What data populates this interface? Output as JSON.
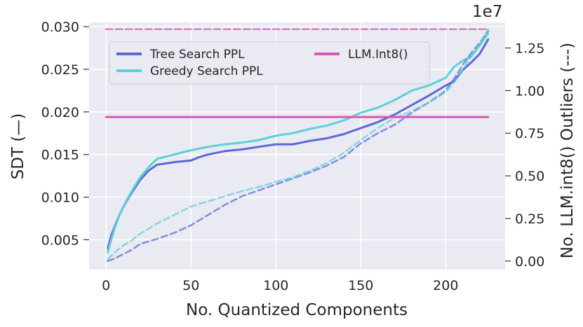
{
  "chart_data": {
    "type": "line",
    "xlabel": "No. Quantized Components",
    "ylabel": "SDT (—)",
    "y2label": "No. LLM.int8() Outliers (---)",
    "y2_multiplier": "1e7",
    "xlim": [
      -10,
      235
    ],
    "ylim": [
      0.0015,
      0.0305
    ],
    "y2lim": [
      -500000,
      14000000
    ],
    "x_ticks": [
      "0",
      "50",
      "100",
      "150",
      "200"
    ],
    "y_ticks": [
      "0.005",
      "0.010",
      "0.015",
      "0.020",
      "0.025",
      "0.030"
    ],
    "y2_ticks": [
      "0.00",
      "0.25",
      "0.50",
      "0.75",
      "1.00",
      "1.25"
    ],
    "grid": true,
    "legend_position": "top-left",
    "colors": {
      "tree": "#5a6ad6",
      "greedy": "#5bd0d8",
      "int8": "#d957b6",
      "background": "#eaeaf2",
      "grid": "#ffffff"
    },
    "legend": [
      {
        "label": "Tree Search PPL",
        "color": "#5a6ad6"
      },
      {
        "label": "Greedy Search PPL",
        "color": "#5bd0d8"
      },
      {
        "label": "LLM.Int8()",
        "color": "#d957b6"
      }
    ],
    "series": [
      {
        "name": "Tree Search PPL",
        "axis": "left",
        "style": "solid",
        "color": "#5a6ad6",
        "x": [
          1,
          3,
          5,
          8,
          12,
          16,
          20,
          25,
          30,
          40,
          50,
          55,
          60,
          70,
          80,
          90,
          100,
          110,
          120,
          130,
          140,
          150,
          160,
          170,
          180,
          190,
          200,
          205,
          210,
          215,
          220,
          225
        ],
        "y": [
          0.004,
          0.0055,
          0.0065,
          0.008,
          0.0095,
          0.0108,
          0.012,
          0.0131,
          0.0138,
          0.0141,
          0.0143,
          0.0147,
          0.015,
          0.0154,
          0.0156,
          0.0159,
          0.0162,
          0.0162,
          0.0166,
          0.0169,
          0.0174,
          0.0181,
          0.0188,
          0.0197,
          0.0208,
          0.0219,
          0.0231,
          0.0236,
          0.0249,
          0.0258,
          0.0268,
          0.0285
        ]
      },
      {
        "name": "Greedy Search PPL",
        "axis": "left",
        "style": "solid",
        "color": "#5bd0d8",
        "x": [
          1,
          3,
          5,
          8,
          12,
          16,
          20,
          25,
          30,
          40,
          50,
          55,
          60,
          70,
          80,
          90,
          100,
          110,
          120,
          130,
          140,
          150,
          160,
          170,
          180,
          190,
          200,
          205,
          210,
          215,
          220,
          225
        ],
        "y": [
          0.0035,
          0.005,
          0.0063,
          0.008,
          0.0096,
          0.011,
          0.0123,
          0.0135,
          0.0145,
          0.015,
          0.0155,
          0.0157,
          0.0159,
          0.0162,
          0.0164,
          0.0167,
          0.0172,
          0.0175,
          0.018,
          0.0184,
          0.019,
          0.0199,
          0.0205,
          0.0214,
          0.0225,
          0.0231,
          0.024,
          0.0253,
          0.026,
          0.0265,
          0.0278,
          0.0292
        ]
      },
      {
        "name": "Tree Search PPL",
        "axis": "right",
        "style": "dashed",
        "color": "#5a6ad6",
        "x": [
          1,
          5,
          10,
          15,
          20,
          30,
          40,
          50,
          60,
          70,
          80,
          90,
          100,
          110,
          120,
          130,
          140,
          150,
          160,
          170,
          180,
          190,
          200,
          205,
          210,
          215,
          220,
          225
        ],
        "y": [
          0,
          150000,
          400000,
          650000,
          1000000,
          1300000,
          1650000,
          2100000,
          2700000,
          3300000,
          3800000,
          4150000,
          4500000,
          4850000,
          5200000,
          5600000,
          6100000,
          6900000,
          7500000,
          8000000,
          8700000,
          9300000,
          10000000,
          10700000,
          11500000,
          12200000,
          12800000,
          13500000
        ]
      },
      {
        "name": "Greedy Search PPL",
        "axis": "right",
        "style": "dashed",
        "color": "#5bd0d8",
        "x": [
          1,
          5,
          10,
          15,
          20,
          30,
          40,
          50,
          60,
          70,
          80,
          90,
          100,
          110,
          120,
          130,
          140,
          150,
          160,
          170,
          180,
          190,
          200,
          205,
          210,
          215,
          220,
          225
        ],
        "y": [
          100000,
          500000,
          900000,
          1200000,
          1600000,
          2200000,
          2700000,
          3200000,
          3500000,
          3800000,
          4100000,
          4350000,
          4650000,
          4900000,
          5300000,
          5750000,
          6350000,
          7100000,
          7800000,
          8400000,
          8800000,
          9300000,
          9900000,
          10500000,
          11200000,
          12000000,
          12700000,
          13600000
        ]
      },
      {
        "name": "LLM.Int8()",
        "axis": "left",
        "style": "solid",
        "color": "#d957b6",
        "x": [
          0,
          225
        ],
        "y": [
          0.0194,
          0.0194
        ]
      },
      {
        "name": "LLM.Int8()",
        "axis": "right",
        "style": "dashed",
        "color": "#d957b6",
        "x": [
          0,
          225
        ],
        "y": [
          13600000,
          13600000
        ]
      }
    ]
  }
}
